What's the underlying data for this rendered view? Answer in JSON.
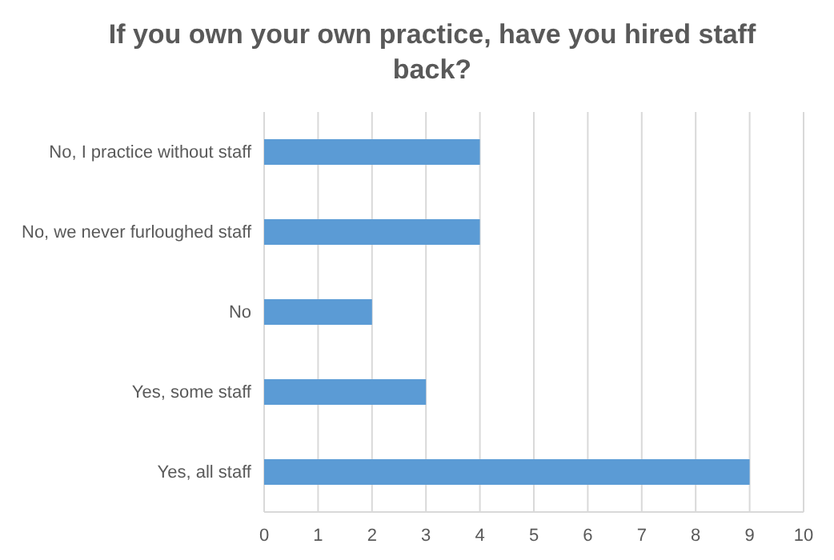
{
  "chart_data": {
    "type": "bar",
    "orientation": "horizontal",
    "title": "If you own your own practice, have you hired staff back?",
    "categories": [
      "No, I practice without staff",
      "No, we never furloughed staff",
      "No",
      "Yes, some staff",
      "Yes, all staff"
    ],
    "values": [
      4,
      4,
      2,
      3,
      9
    ],
    "color": "#5b9bd5",
    "xlim": [
      0,
      10
    ],
    "xticks": [
      0,
      1,
      2,
      3,
      4,
      5,
      6,
      7,
      8,
      9,
      10
    ],
    "grid": "x"
  }
}
